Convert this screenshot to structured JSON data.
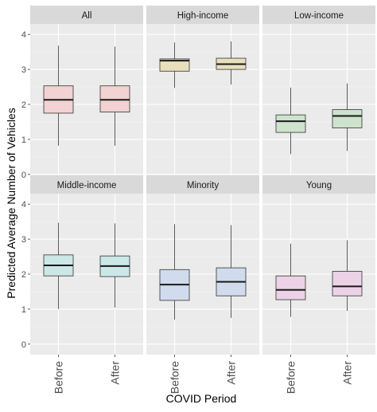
{
  "chart_data": {
    "type": "box",
    "xlabel": "COVID Period",
    "ylabel": "Predicted Average Number of Vehicles",
    "ylim": [
      -0.3,
      4.3
    ],
    "yticks": [
      0,
      1,
      2,
      3,
      4
    ],
    "categories": [
      "Before",
      "After"
    ],
    "panels": [
      {
        "title": "All",
        "color": "#f2d2d2",
        "boxes": [
          {
            "category": "Before",
            "min": 0.82,
            "q1": 1.75,
            "median": 2.13,
            "q3": 2.53,
            "max": 3.68
          },
          {
            "category": "After",
            "min": 0.82,
            "q1": 1.78,
            "median": 2.13,
            "q3": 2.53,
            "max": 3.65
          }
        ]
      },
      {
        "title": "High-income",
        "color": "#e8e0bd",
        "boxes": [
          {
            "category": "Before",
            "min": 2.47,
            "q1": 2.95,
            "median": 3.25,
            "q3": 3.3,
            "max": 3.77
          },
          {
            "category": "After",
            "min": 2.57,
            "q1": 3.0,
            "median": 3.15,
            "q3": 3.32,
            "max": 3.8
          }
        ]
      },
      {
        "title": "Low-income",
        "color": "#cde3cd",
        "boxes": [
          {
            "category": "Before",
            "min": 0.58,
            "q1": 1.2,
            "median": 1.52,
            "q3": 1.7,
            "max": 2.48
          },
          {
            "category": "After",
            "min": 0.67,
            "q1": 1.33,
            "median": 1.67,
            "q3": 1.85,
            "max": 2.6
          }
        ]
      },
      {
        "title": "Middle-income",
        "color": "#cbe7e6",
        "boxes": [
          {
            "category": "Before",
            "min": 1.0,
            "q1": 1.95,
            "median": 2.25,
            "q3": 2.55,
            "max": 3.47
          },
          {
            "category": "After",
            "min": 1.05,
            "q1": 1.93,
            "median": 2.23,
            "q3": 2.52,
            "max": 3.45
          }
        ]
      },
      {
        "title": "Minority",
        "color": "#d0dbee",
        "boxes": [
          {
            "category": "Before",
            "min": 0.7,
            "q1": 1.25,
            "median": 1.7,
            "q3": 2.13,
            "max": 3.43
          },
          {
            "category": "After",
            "min": 0.75,
            "q1": 1.38,
            "median": 1.78,
            "q3": 2.18,
            "max": 3.4
          }
        ]
      },
      {
        "title": "Young",
        "color": "#ecd2e6",
        "boxes": [
          {
            "category": "Before",
            "min": 0.78,
            "q1": 1.27,
            "median": 1.55,
            "q3": 1.95,
            "max": 2.87
          },
          {
            "category": "After",
            "min": 0.95,
            "q1": 1.38,
            "median": 1.65,
            "q3": 2.08,
            "max": 2.97
          }
        ]
      }
    ],
    "grid": true,
    "legend": "none"
  }
}
